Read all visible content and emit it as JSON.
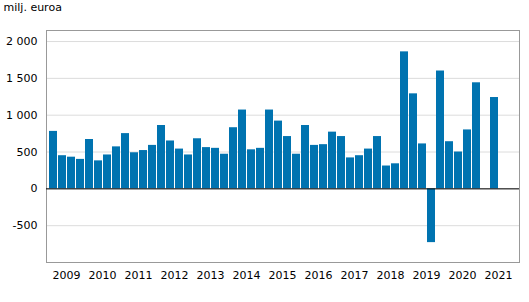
{
  "chart_data": {
    "type": "bar",
    "y_label": "milj. euroa",
    "categories": [
      null,
      "2009",
      null,
      null,
      null,
      "2010",
      null,
      null,
      null,
      "2011",
      null,
      null,
      null,
      "2012",
      null,
      null,
      null,
      "2013",
      null,
      null,
      null,
      "2014",
      null,
      null,
      null,
      "2015",
      null,
      null,
      null,
      "2016",
      null,
      null,
      null,
      "2017",
      null,
      null,
      null,
      "2018",
      null,
      null,
      null,
      "2019",
      null,
      null,
      null,
      "2020",
      null,
      null,
      null,
      "2021",
      null,
      null
    ],
    "values": [
      780,
      450,
      430,
      400,
      670,
      380,
      460,
      570,
      750,
      490,
      520,
      590,
      860,
      650,
      540,
      460,
      680,
      560,
      550,
      470,
      830,
      1070,
      530,
      550,
      1070,
      920,
      710,
      470,
      860,
      590,
      600,
      770,
      710,
      420,
      450,
      540,
      710,
      310,
      340,
      1860,
      1290,
      610,
      -730,
      1600,
      640,
      500,
      800,
      1440,
      null,
      1240,
      null,
      null
    ],
    "color": "#0073b0",
    "ylim": [
      -1000,
      2150
    ],
    "yticks": [
      -500,
      0,
      500,
      {
        "value": 1000,
        "label": "1 000"
      },
      {
        "value": 1500,
        "label": "1 500"
      },
      {
        "value": 2000,
        "label": "2 000"
      }
    ],
    "grid": true
  }
}
